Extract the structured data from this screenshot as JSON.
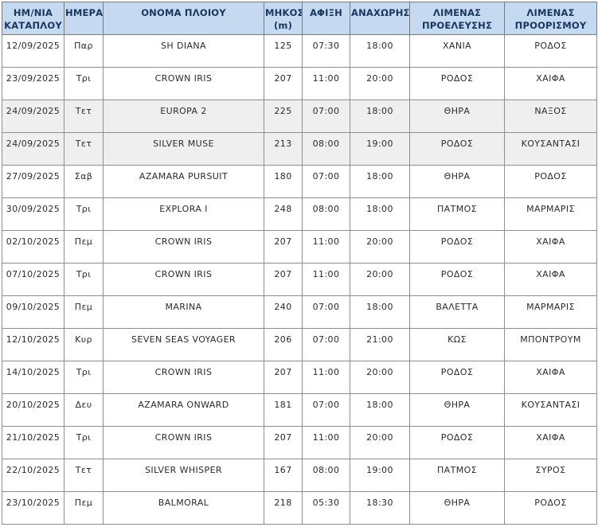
{
  "table": {
    "title": "cruise-ship-arrivals-schedule",
    "columns": [
      {
        "label": "ΗΜ/ΝΙΑ\nΚΑΤΑΠΛΟΥ"
      },
      {
        "label": "ΗΜΕΡΑ"
      },
      {
        "label": "ΟΝΟΜΑ ΠΛΟΙΟΥ"
      },
      {
        "label": "ΜΗΚΟΣ\n(m)"
      },
      {
        "label": "ΑΦΙΞΗ"
      },
      {
        "label": "ΑΝΑΧΩΡΗΣΗ"
      },
      {
        "label": "ΛΙΜΕΝΑΣ\nΠΡΟΕΛΕΥΣΗΣ"
      },
      {
        "label": "ΛΙΜΕΝΑΣ\nΠΡΟΟΡΙΣΜΟΥ"
      }
    ],
    "rows": [
      {
        "date": "12/09/2025",
        "day": "Παρ",
        "ship": "SH DIANA",
        "length": "125",
        "arrival": "07:30",
        "departure": "18:00",
        "origin": "ΧΑΝΙΑ",
        "destination": "ΡΟΔΟΣ",
        "shaded": false
      },
      {
        "date": "23/09/2025",
        "day": "Τρι",
        "ship": "CROWN IRIS",
        "length": "207",
        "arrival": "11:00",
        "departure": "20:00",
        "origin": "ΡΟΔΟΣ",
        "destination": "ΧΑΙΦΑ",
        "shaded": false
      },
      {
        "date": "24/09/2025",
        "day": "Τετ",
        "ship": "EUROPA 2",
        "length": "225",
        "arrival": "07:00",
        "departure": "18:00",
        "origin": "ΘΗΡΑ",
        "destination": "ΝΑΞΟΣ",
        "shaded": true
      },
      {
        "date": "24/09/2025",
        "day": "Τετ",
        "ship": "SILVER MUSE",
        "length": "213",
        "arrival": "08:00",
        "departure": "19:00",
        "origin": "ΡΟΔΟΣ",
        "destination": "ΚΟΥΣΑΝΤΑΣΙ",
        "shaded": true
      },
      {
        "date": "27/09/2025",
        "day": "Σαβ",
        "ship": "AZAMARA PURSUIT",
        "length": "180",
        "arrival": "07:00",
        "departure": "18:00",
        "origin": "ΘΗΡΑ",
        "destination": "ΡΟΔΟΣ",
        "shaded": false
      },
      {
        "date": "30/09/2025",
        "day": "Τρι",
        "ship": "EXPLORA I",
        "length": "248",
        "arrival": "08:00",
        "departure": "18:00",
        "origin": "ΠΑΤΜΟΣ",
        "destination": "ΜΑΡΜΑΡΙΣ",
        "shaded": false
      },
      {
        "date": "02/10/2025",
        "day": "Πεμ",
        "ship": "CROWN IRIS",
        "length": "207",
        "arrival": "11:00",
        "departure": "20:00",
        "origin": "ΡΟΔΟΣ",
        "destination": "ΧΑΙΦΑ",
        "shaded": false
      },
      {
        "date": "07/10/2025",
        "day": "Τρι",
        "ship": "CROWN IRIS",
        "length": "207",
        "arrival": "11:00",
        "departure": "20:00",
        "origin": "ΡΟΔΟΣ",
        "destination": "ΧΑΙΦΑ",
        "shaded": false
      },
      {
        "date": "09/10/2025",
        "day": "Πεμ",
        "ship": "MARINA",
        "length": "240",
        "arrival": "07:00",
        "departure": "18:00",
        "origin": "ΒΑΛΕΤΤΑ",
        "destination": "ΜΑΡΜΑΡΙΣ",
        "shaded": false
      },
      {
        "date": "12/10/2025",
        "day": "Κυρ",
        "ship": "SEVEN SEAS VOYAGER",
        "length": "206",
        "arrival": "07:00",
        "departure": "21:00",
        "origin": "ΚΩΣ",
        "destination": "ΜΠΟΝΤΡΟΥΜ",
        "shaded": false
      },
      {
        "date": "14/10/2025",
        "day": "Τρι",
        "ship": "CROWN IRIS",
        "length": "207",
        "arrival": "11:00",
        "departure": "20:00",
        "origin": "ΡΟΔΟΣ",
        "destination": "ΧΑΙΦΑ",
        "shaded": false
      },
      {
        "date": "20/10/2025",
        "day": "Δευ",
        "ship": "AZAMARA ONWARD",
        "length": "181",
        "arrival": "07:00",
        "departure": "18:00",
        "origin": "ΘΗΡΑ",
        "destination": "ΚΟΥΣΑΝΤΑΣΙ",
        "shaded": false
      },
      {
        "date": "21/10/2025",
        "day": "Τρι",
        "ship": "CROWN IRIS",
        "length": "207",
        "arrival": "11:00",
        "departure": "20:00",
        "origin": "ΡΟΔΟΣ",
        "destination": "ΧΑΙΦΑ",
        "shaded": false
      },
      {
        "date": "22/10/2025",
        "day": "Τετ",
        "ship": "SILVER WHISPER",
        "length": "167",
        "arrival": "08:00",
        "departure": "19:00",
        "origin": "ΠΑΤΜΟΣ",
        "destination": "ΣΥΡΟΣ",
        "shaded": false
      },
      {
        "date": "23/10/2025",
        "day": "Πεμ",
        "ship": "BALMORAL",
        "length": "218",
        "arrival": "05:30",
        "departure": "18:30",
        "origin": "ΘΗΡΑ",
        "destination": "ΡΟΔΟΣ",
        "shaded": false
      }
    ]
  },
  "colors": {
    "header_bg": "#c5d9f1",
    "header_text": "#17375e",
    "row_shaded_bg": "#efefef",
    "border": "#8f8f8f",
    "body_text": "#2b2b2b"
  }
}
